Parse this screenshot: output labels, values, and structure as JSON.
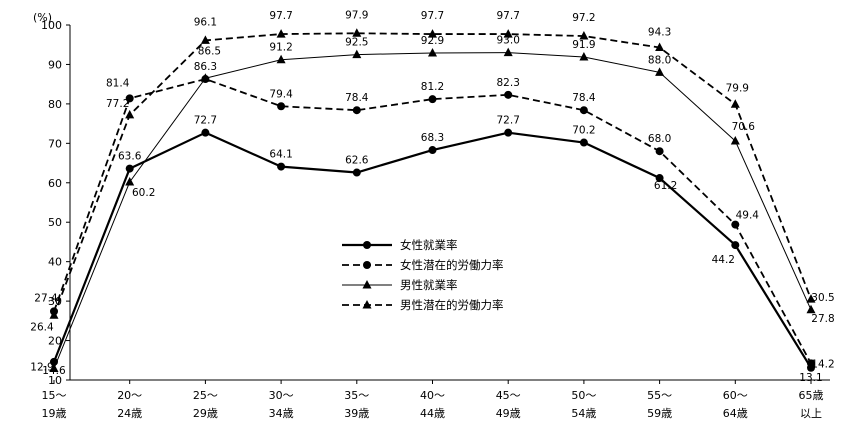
{
  "chart_data": {
    "type": "line",
    "title": "",
    "xlabel": "",
    "ylabel": "",
    "y_unit": "(%)",
    "ylim": [
      10,
      100
    ],
    "yticks": [
      10,
      20,
      30,
      40,
      50,
      60,
      70,
      80,
      90,
      100
    ],
    "categories": [
      [
        "15～",
        "19歳"
      ],
      [
        "20～",
        "24歳"
      ],
      [
        "25～",
        "29歳"
      ],
      [
        "30～",
        "34歳"
      ],
      [
        "35～",
        "39歳"
      ],
      [
        "40～",
        "44歳"
      ],
      [
        "45～",
        "49歳"
      ],
      [
        "50～",
        "54歳"
      ],
      [
        "55～",
        "59歳"
      ],
      [
        "60～",
        "64歳"
      ],
      [
        "65歳",
        "以上"
      ]
    ],
    "grid": false,
    "legend_position": "center",
    "series": [
      {
        "name": "女性就業率",
        "line_style": "solid-thick",
        "marker": "circle",
        "color": "#000000",
        "values": [
          14.6,
          63.6,
          72.7,
          64.1,
          62.6,
          68.3,
          72.7,
          70.2,
          61.2,
          44.2,
          13.1
        ],
        "labels": [
          "14.6",
          "63.6",
          "72.7",
          "64.1",
          "62.6",
          "68.3",
          "72.7",
          "70.2",
          "61.2",
          "44.2",
          "13.1"
        ]
      },
      {
        "name": "女性潜在的労働力率",
        "line_style": "dashed",
        "marker": "circle",
        "color": "#000000",
        "values": [
          27.4,
          81.4,
          86.3,
          79.4,
          78.4,
          81.2,
          82.3,
          78.4,
          68.0,
          49.4,
          14.2
        ],
        "labels": [
          "27.4",
          "81.4",
          "86.3",
          "79.4",
          "78.4",
          "81.2",
          "82.3",
          "78.4",
          "68.0",
          "49.4",
          "14.2"
        ]
      },
      {
        "name": "男性就業率",
        "line_style": "solid-thin",
        "marker": "triangle",
        "color": "#000000",
        "values": [
          12.9,
          60.2,
          86.5,
          91.2,
          92.5,
          92.9,
          93.0,
          91.9,
          88.0,
          70.6,
          27.8
        ],
        "labels": [
          "12.9",
          "60.2",
          "86.5",
          "91.2",
          "92.5",
          "92.9",
          "93.0",
          "91.9",
          "88.0",
          "70.6",
          "27.8"
        ]
      },
      {
        "name": "男性潜在的労働力率",
        "line_style": "dashed",
        "marker": "triangle",
        "color": "#000000",
        "values": [
          26.4,
          77.2,
          96.1,
          97.7,
          97.9,
          97.7,
          97.7,
          97.2,
          94.3,
          79.9,
          30.5
        ],
        "labels": [
          "26.4",
          "77.2",
          "96.1",
          "97.7",
          "97.9",
          "97.7",
          "97.7",
          "97.2",
          "94.3",
          "79.9",
          "30.5"
        ]
      }
    ]
  }
}
